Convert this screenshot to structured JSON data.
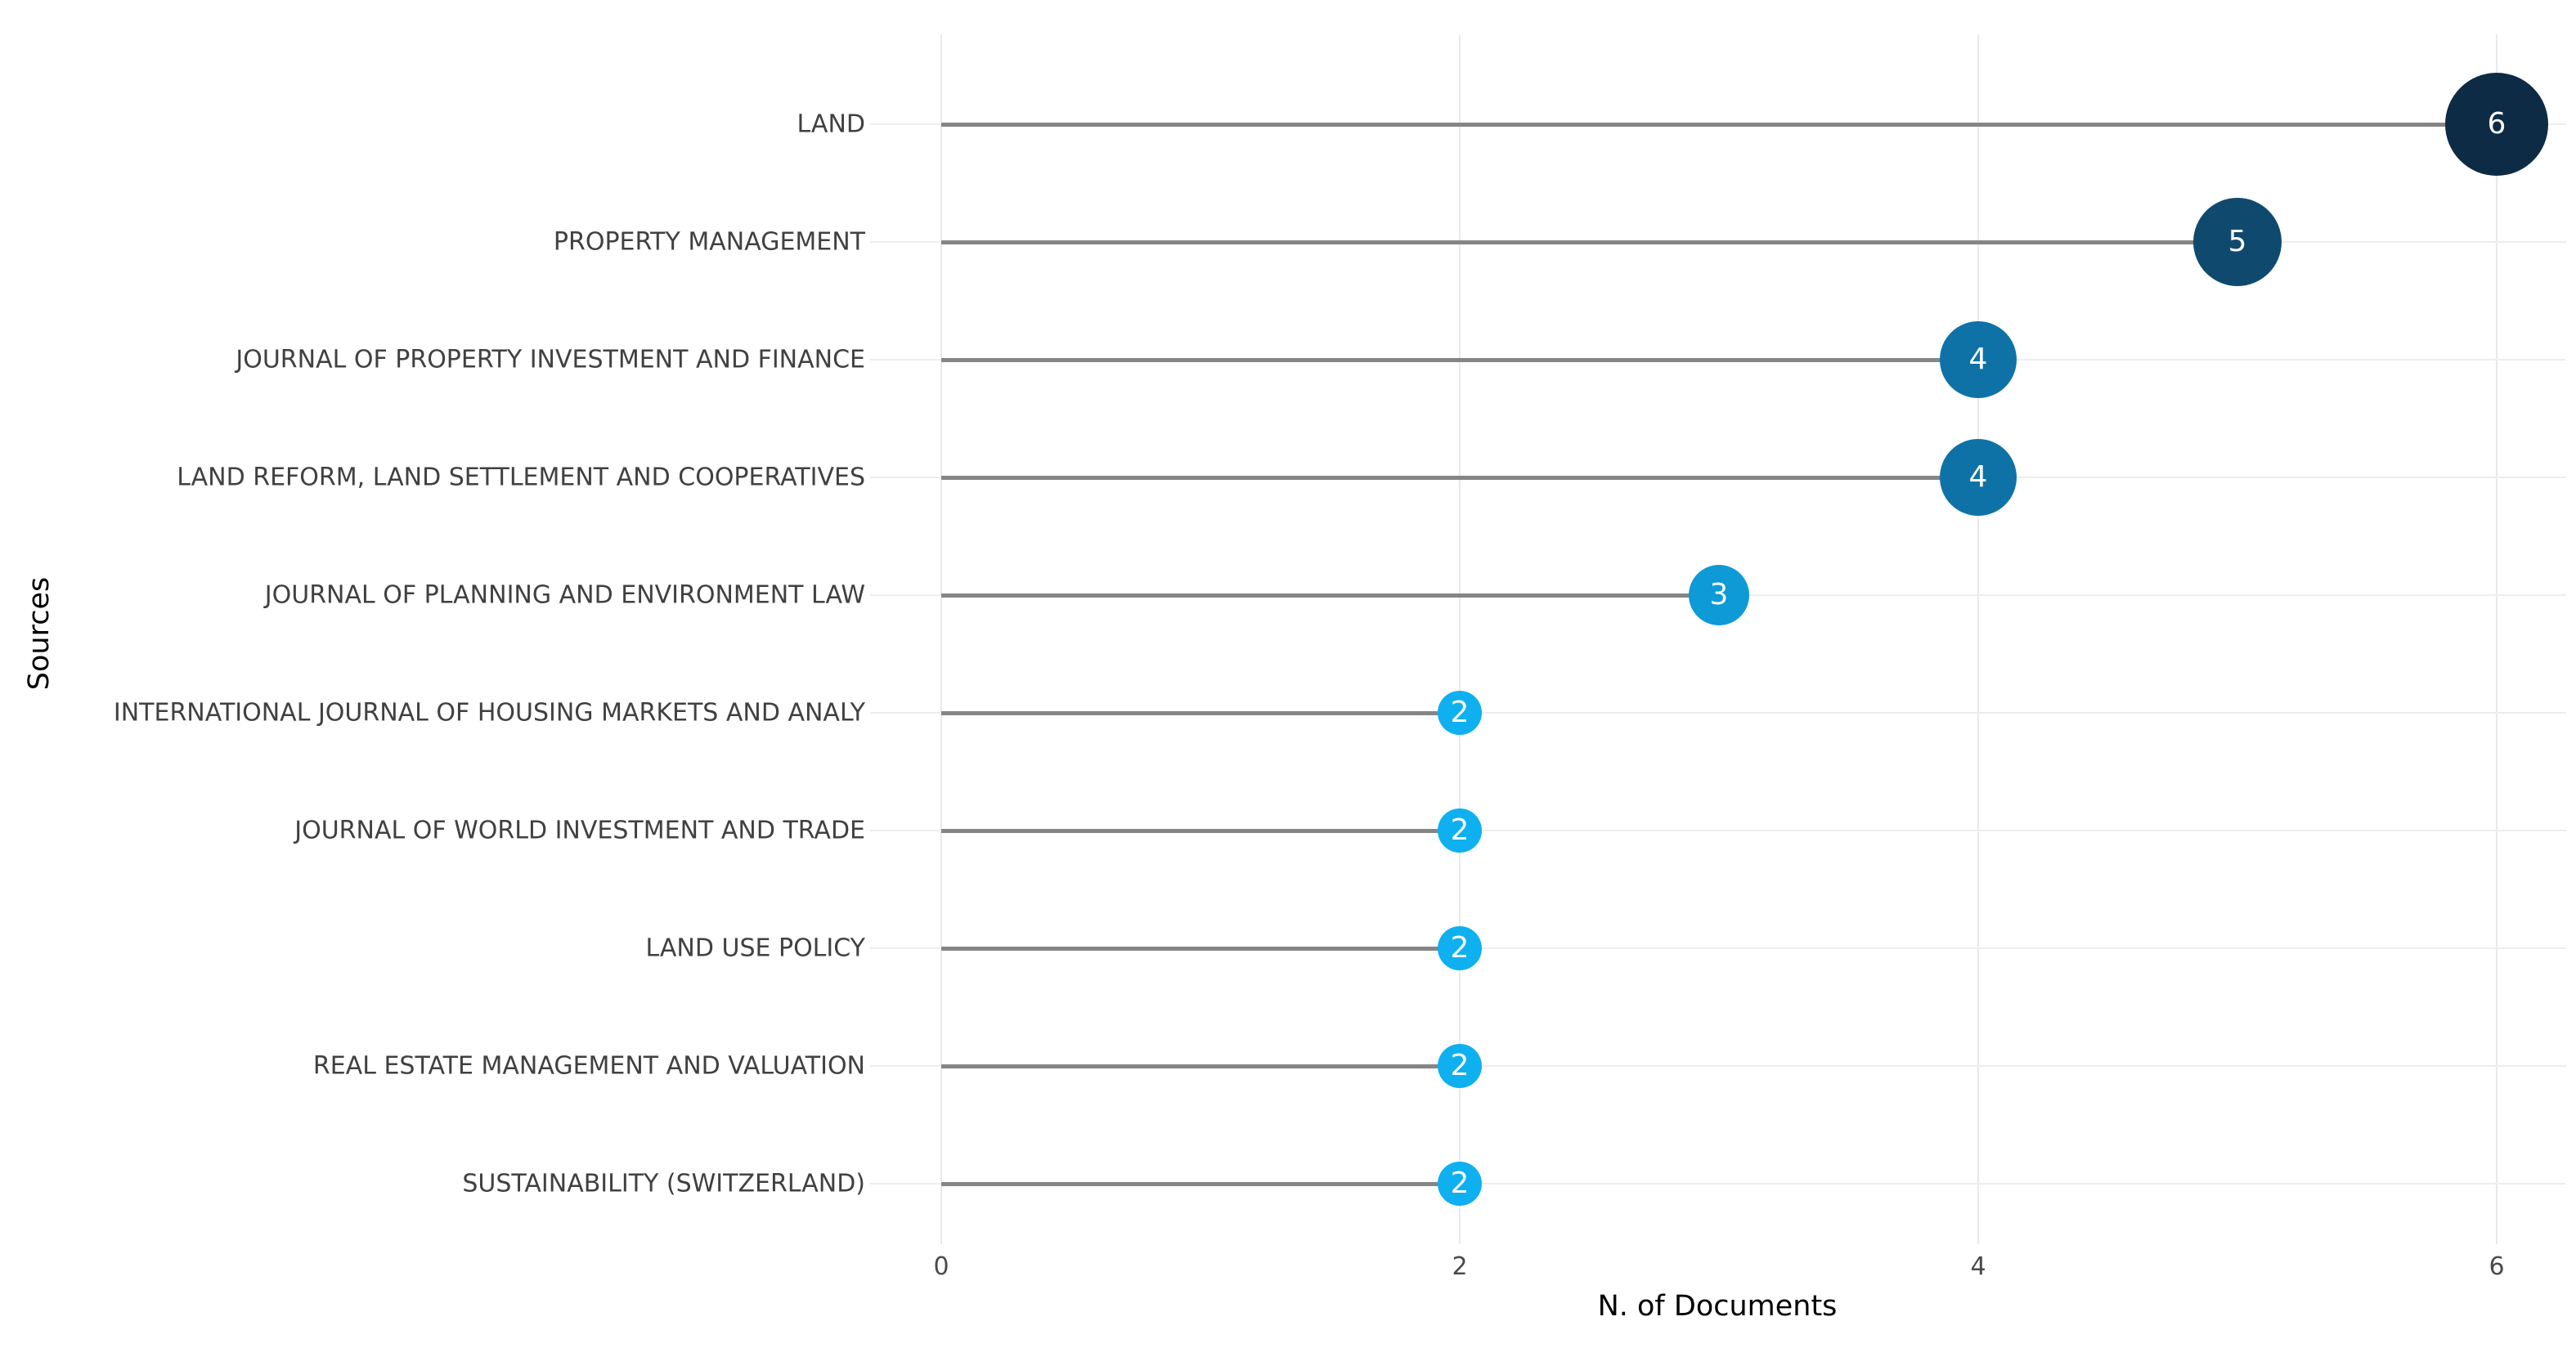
{
  "chart_data": {
    "type": "scatter",
    "subtype": "horizontal-lollipop",
    "title": "",
    "xlabel": "N. of Documents",
    "ylabel": "Sources",
    "xlim": [
      0,
      6.27
    ],
    "xticks": [
      "0",
      "2",
      "4",
      "6"
    ],
    "grid": true,
    "legend": "none",
    "categories": [
      "LAND",
      "PROPERTY MANAGEMENT",
      "JOURNAL OF PROPERTY INVESTMENT AND FINANCE",
      "LAND REFORM, LAND SETTLEMENT AND COOPERATIVES",
      "JOURNAL OF PLANNING AND ENVIRONMENT LAW",
      "INTERNATIONAL JOURNAL OF HOUSING MARKETS AND ANALY",
      "JOURNAL OF WORLD INVESTMENT AND TRADE",
      "LAND USE POLICY",
      "REAL ESTATE MANAGEMENT AND VALUATION",
      "SUSTAINABILITY (SWITZERLAND)"
    ],
    "values": [
      6,
      5,
      4,
      4,
      3,
      2,
      2,
      2,
      2,
      2
    ],
    "point_labels": [
      "6",
      "5",
      "4",
      "4",
      "3",
      "2",
      "2",
      "2",
      "2",
      "2"
    ],
    "colors": {
      "value_2": "#0fb0ef",
      "value_3": "#0d9ad7",
      "value_4": "#0f72a6",
      "value_5": "#10496e",
      "value_6": "#0d2b45",
      "stem": "#858585",
      "gridline": "#e9e9e9",
      "row_line": "#ededed",
      "category_text": "#404040",
      "tick_text": "#4a4a4a",
      "axis_title_text": "#000000",
      "bubble_text": "#ffffff",
      "background": "#ffffff"
    },
    "point_radius_px": {
      "value_2": 27,
      "value_3": 37,
      "value_4": 47,
      "value_5": 54,
      "value_6": 63
    }
  }
}
